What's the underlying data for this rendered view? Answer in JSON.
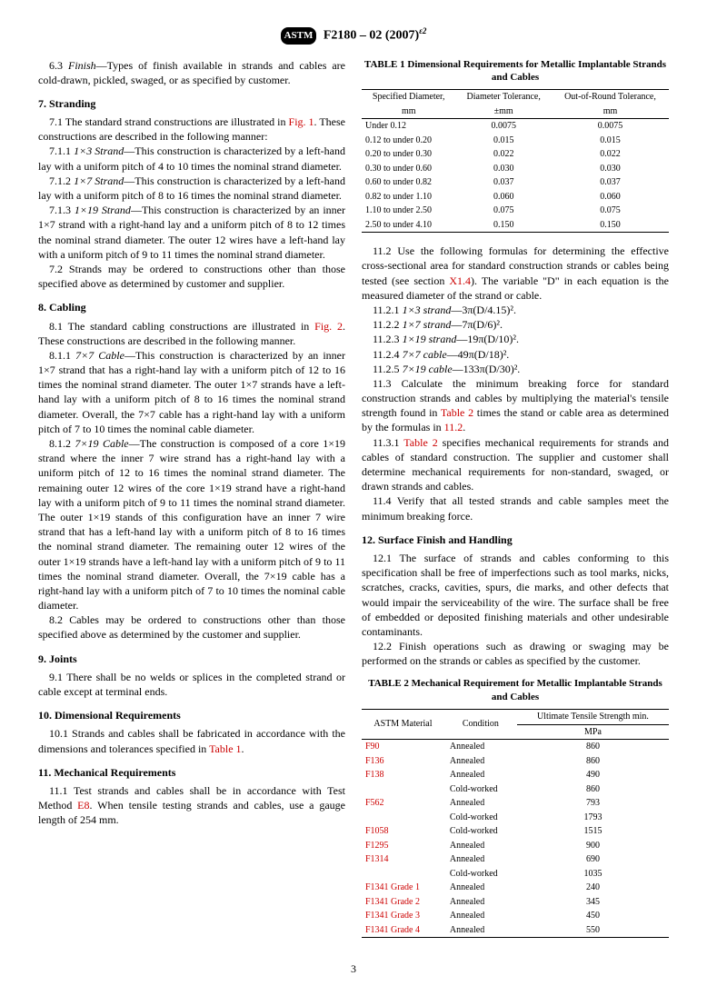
{
  "header": {
    "logo": "ASTM",
    "designation": "F2180 – 02 (2007)",
    "sup": "ε2"
  },
  "pagenum": "3",
  "left": {
    "p63": "6.3 Finish—Types of finish available in strands and cables are cold-drawn, pickled, swaged, or as specified by customer.",
    "s7": "7. Stranding",
    "p71a": "7.1 The standard strand constructions are illustrated in ",
    "p71b": "Fig. 1",
    "p71c": ". These constructions are described in the following manner:",
    "p711a": "7.1.1 ",
    "p711b": "1×3 Strand",
    "p711c": "—This construction is characterized by a left-hand lay with a uniform pitch of 4 to 10 times the nominal strand diameter.",
    "p712a": "7.1.2 ",
    "p712b": "1×7 Strand",
    "p712c": "—This construction is characterized by a left-hand lay with a uniform pitch of 8 to 16 times the nominal strand diameter.",
    "p713a": "7.1.3 ",
    "p713b": "1×19 Strand",
    "p713c": "—This construction is characterized by an inner 1×7 strand with a right-hand lay and a uniform pitch of 8 to 12 times the nominal strand diameter. The outer 12 wires have a left-hand lay with a uniform pitch of 9 to 11 times the nominal strand diameter.",
    "p72": "7.2 Strands may be ordered to constructions other than those specified above as determined by customer and supplier.",
    "s8": "8. Cabling",
    "p81a": "8.1 The standard cabling constructions are illustrated in ",
    "p81b": "Fig. 2",
    "p81c": ". These constructions are described in the following manner.",
    "p811a": "8.1.1 ",
    "p811b": "7×7 Cable",
    "p811c": "—This construction is characterized by an inner 1×7 strand that has a right-hand lay with a uniform pitch of 12 to 16 times the nominal strand diameter. The outer 1×7 strands have a left-hand lay with a uniform pitch of 8 to 16 times the nominal strand diameter. Overall, the 7×7 cable has a right-hand lay with a uniform pitch of 7 to 10 times the nominal cable diameter.",
    "p812a": "8.1.2 ",
    "p812b": "7×19 Cable",
    "p812c": "—The construction is composed of a core 1×19 strand where the inner 7 wire strand has a right-hand lay with a uniform pitch of 12 to 16 times the nominal strand diameter. The remaining outer 12 wires of the core 1×19 strand have a right-hand lay with a uniform pitch of 9 to 11 times the nominal strand diameter. The outer 1×19 stands of this configuration have an inner 7 wire strand that has a left-hand lay with a uniform pitch of 8 to 16 times the nominal strand diameter. The remaining outer 12 wires of the outer 1×19 strands have a left-hand lay with a uniform pitch of 9 to 11 times the nominal strand diameter. Overall, the 7×19 cable has a right-hand lay with a uniform pitch of 7 to 10 times the nominal cable diameter.",
    "p82": "8.2 Cables may be ordered to constructions other than those specified above as determined by the customer and supplier.",
    "s9": "9. Joints",
    "p91": "9.1 There shall be no welds or splices in the completed strand or cable except at terminal ends.",
    "s10": "10. Dimensional Requirements",
    "p101a": "10.1 Strands and cables shall be fabricated in accordance with the dimensions and tolerances specified in ",
    "p101b": "Table 1",
    "p101c": ".",
    "s11": "11. Mechanical Requirements",
    "p111a": "11.1 Test strands and cables shall be in accordance with Test Method ",
    "p111b": "E8",
    "p111c": ". When tensile testing strands and cables, use a gauge length of 254 mm."
  },
  "right": {
    "t1title": "TABLE 1 Dimensional Requirements for Metallic Implantable Strands and Cables",
    "t1": {
      "h1a": "Specified Diameter,",
      "h1b": "mm",
      "h2a": "Diameter Tolerance,",
      "h2b": "±mm",
      "h3a": "Out-of-Round Tolerance,",
      "h3b": "mm",
      "rows": [
        [
          "Under 0.12",
          "0.0075",
          "0.0075"
        ],
        [
          "0.12 to under 0.20",
          "0.015",
          "0.015"
        ],
        [
          "0.20 to under 0.30",
          "0.022",
          "0.022"
        ],
        [
          "0.30 to under 0.60",
          "0.030",
          "0.030"
        ],
        [
          "0.60 to under 0.82",
          "0.037",
          "0.037"
        ],
        [
          "0.82 to under 1.10",
          "0.060",
          "0.060"
        ],
        [
          "1.10 to under 2.50",
          "0.075",
          "0.075"
        ],
        [
          "2.50 to under 4.10",
          "0.150",
          "0.150"
        ]
      ]
    },
    "p112a": "11.2 Use the following formulas for determining the effective cross-sectional area for standard construction strands or cables being tested (see section ",
    "p112b": "X1.4",
    "p112c": "). The variable \"D\" in each equation is the measured diameter of the strand or cable.",
    "f1": "11.2.1 1×3 strand—3π(D/4.15)².",
    "f2": "11.2.2 1×7 strand—7π(D/6)².",
    "f3": "11.2.3 1×19 strand—19π(D/10)².",
    "f4": "11.2.4 7×7 cable—49π(D/18)².",
    "f5": "11.2.5 7×19 cable—133π(D/30)².",
    "p113a": "11.3 Calculate the minimum breaking force for standard construction strands and cables by multiplying the material's tensile strength found in ",
    "p113b": "Table 2",
    "p113c": " times the stand or cable area as determined by the formulas in ",
    "p113d": "11.2",
    "p113e": ".",
    "p1131a": "11.3.1 ",
    "p1131b": "Table 2",
    "p1131c": " specifies mechanical requirements for strands and cables of standard construction. The supplier and customer shall determine mechanical requirements for non-standard, swaged, or drawn strands and cables.",
    "p114": "11.4 Verify that all tested strands and cable samples meet the minimum breaking force.",
    "s12": "12. Surface Finish and Handling",
    "p121": "12.1 The surface of strands and cables conforming to this specification shall be free of imperfections such as tool marks, nicks, scratches, cracks, cavities, spurs, die marks, and other defects that would impair the serviceability of the wire. The surface shall be free of embedded or deposited finishing materials and other undesirable contaminants.",
    "p122": "12.2 Finish operations such as drawing or swaging may be performed on the strands or cables as specified by the customer.",
    "t2title": "TABLE 2 Mechanical Requirement for Metallic Implantable Strands and Cables",
    "t2": {
      "h1": "ASTM Material",
      "h2": "Condition",
      "h3": "Ultimate Tensile Strength min.",
      "h3b": "MPa",
      "rows": [
        [
          "F90",
          "Annealed",
          "860"
        ],
        [
          "F136",
          "Annealed",
          "860"
        ],
        [
          "F138",
          "Annealed",
          "490"
        ],
        [
          "",
          "Cold-worked",
          "860"
        ],
        [
          "F562",
          "Annealed",
          "793"
        ],
        [
          "",
          "Cold-worked",
          "1793"
        ],
        [
          "F1058",
          "Cold-worked",
          "1515"
        ],
        [
          "F1295",
          "Annealed",
          "900"
        ],
        [
          "F1314",
          "Annealed",
          "690"
        ],
        [
          "",
          "Cold-worked",
          "1035"
        ],
        [
          "F1341 Grade 1",
          "Annealed",
          "240"
        ],
        [
          "F1341 Grade 2",
          "Annealed",
          "345"
        ],
        [
          "F1341 Grade 3",
          "Annealed",
          "450"
        ],
        [
          "F1341 Grade 4",
          "Annealed",
          "550"
        ]
      ]
    }
  }
}
